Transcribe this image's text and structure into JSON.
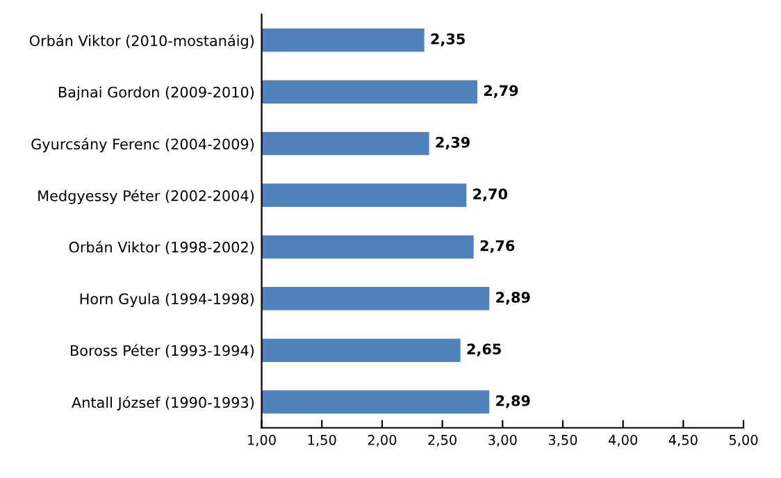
{
  "chart_data": {
    "type": "bar",
    "orientation": "horizontal",
    "categories": [
      "Orbán Viktor (2010-mostanáig)",
      "Bajnai Gordon (2009-2010)",
      "Gyurcsány Ferenc (2004-2009)",
      "Medgyessy Péter (2002-2004)",
      "Orbán Viktor (1998-2002)",
      "Horn Gyula (1994-1998)",
      "Boross Péter (1993-1994)",
      "Antall József (1990-1993)"
    ],
    "values": [
      2.35,
      2.79,
      2.39,
      2.7,
      2.76,
      2.89,
      2.65,
      2.89
    ],
    "value_labels": [
      "2,35",
      "2,79",
      "2,39",
      "2,70",
      "2,76",
      "2,89",
      "2,65",
      "2,89"
    ],
    "color": "#4f81bd",
    "xlim": [
      1,
      5
    ],
    "xticks": [
      {
        "value": 1,
        "label": "1,00"
      },
      {
        "value": 1.5,
        "label": "1,50"
      },
      {
        "value": 2,
        "label": "2,00"
      },
      {
        "value": 2.5,
        "label": "2,50"
      },
      {
        "value": 3,
        "label": "3,00"
      },
      {
        "value": 3.5,
        "label": "3,50"
      },
      {
        "value": 4,
        "label": "4,00"
      },
      {
        "value": 4.5,
        "label": "4,50"
      },
      {
        "value": 5,
        "label": "5,00"
      }
    ],
    "grid": false,
    "legend": false
  }
}
